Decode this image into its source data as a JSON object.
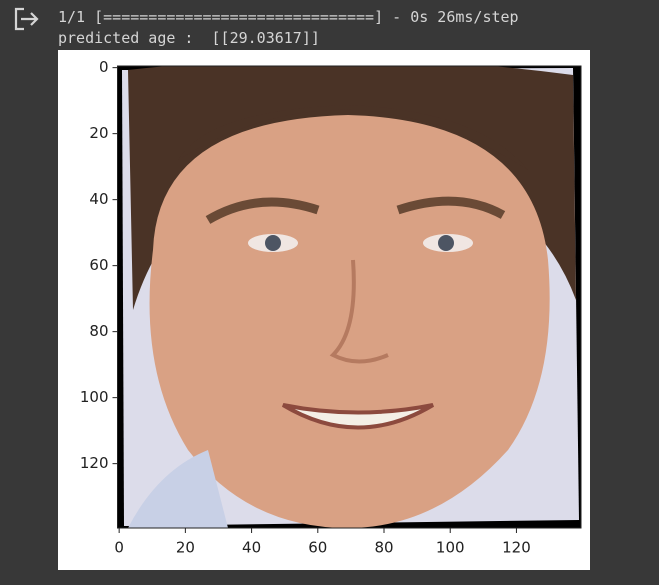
{
  "output": {
    "lines": [
      "1/1 [==============================] - 0s 26ms/step",
      "predicted age :  [[29.03617]]"
    ]
  },
  "chart_data": {
    "type": "image",
    "xlim": [
      -0.5,
      139.5
    ],
    "ylim": [
      139.5,
      -0.5
    ],
    "xticks": [
      0,
      20,
      40,
      60,
      80,
      100,
      120
    ],
    "yticks": [
      0,
      20,
      40,
      60,
      80,
      100,
      120
    ]
  }
}
